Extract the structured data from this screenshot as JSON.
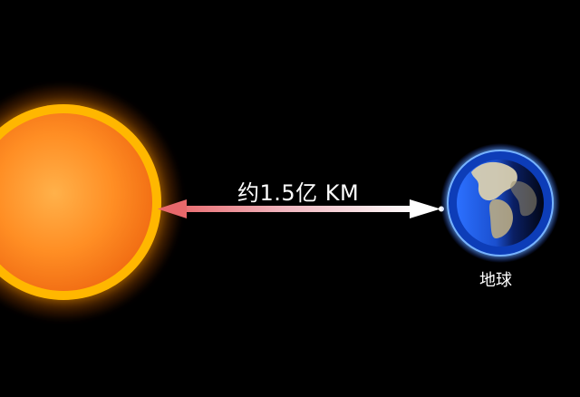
{
  "distance_label": "约1.5亿  KM",
  "earth_label": "地球",
  "colors": {
    "background": "#000000",
    "sun_core": "#ff8a1e",
    "sun_glow": "#ffb300",
    "arrow_left": "#e8686b",
    "arrow_right": "#ffffff",
    "earth_ocean": "#1f55d8",
    "earth_halo": "#6aa8ff"
  },
  "icons": {
    "sun": "sun-icon",
    "earth": "earth-icon",
    "arrow": "double-arrow-icon"
  }
}
